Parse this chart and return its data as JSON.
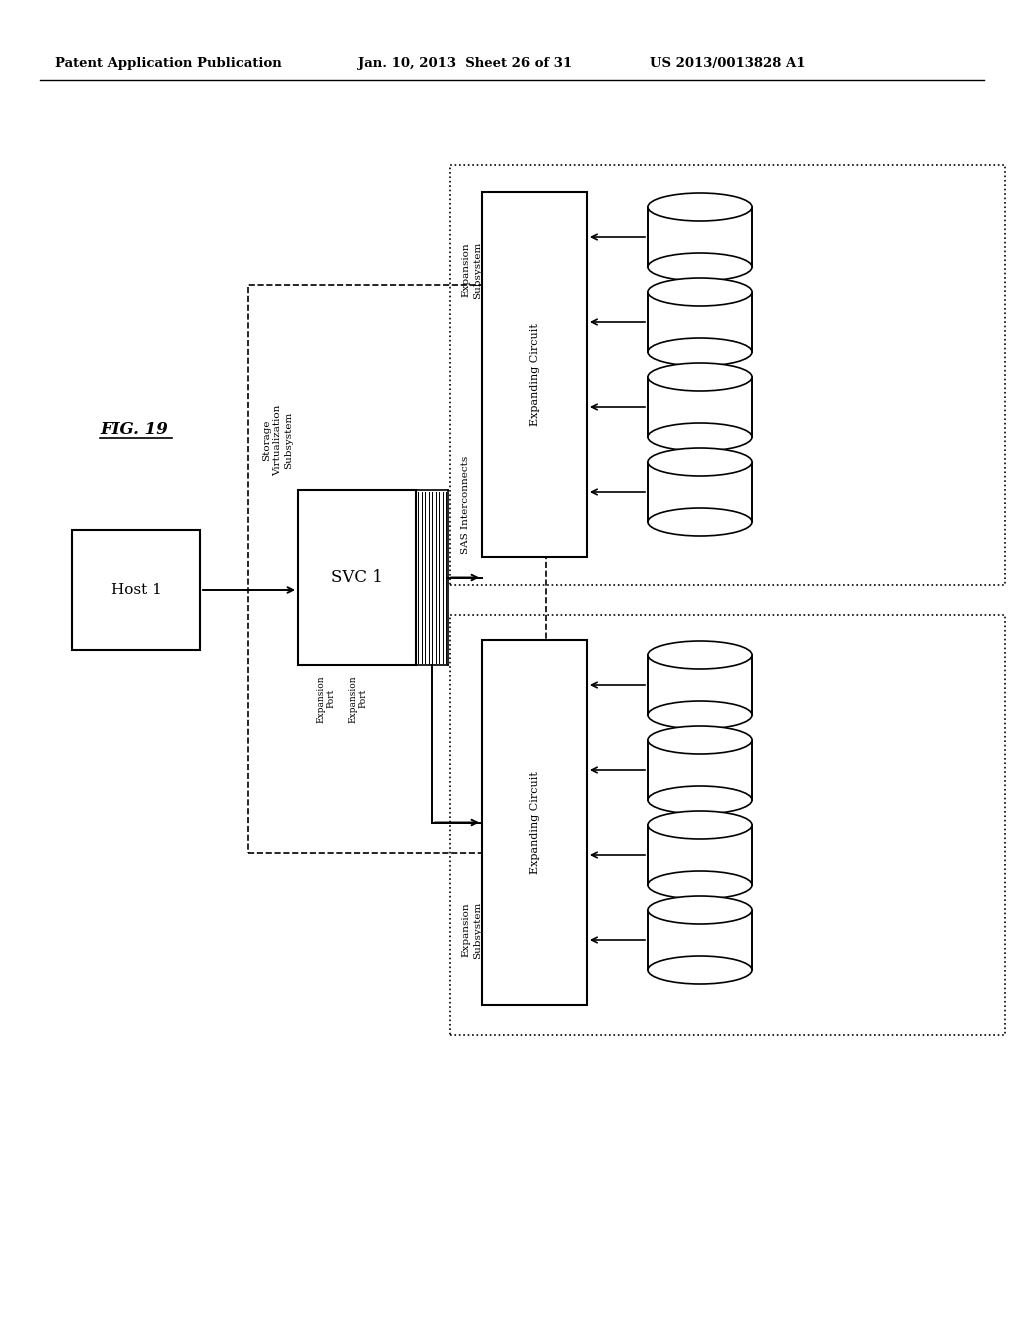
{
  "header_left": "Patent Application Publication",
  "header_center": "Jan. 10, 2013  Sheet 26 of 31",
  "header_right": "US 2013/0013828 A1",
  "fig_label": "FIG. 19",
  "background_color": "#ffffff",
  "text_color": "#000000",
  "line_color": "#000000",
  "host_label": "Host 1",
  "svc_label": "SVC 1",
  "sas_label": "SAS Interconnects",
  "svs_label": "Storage\nVirtualization\nSubsystem",
  "exp_port1_label": "Expansion\nPort",
  "exp_port2_label": "Expansion\nPort",
  "exp_circuit_label": "Expanding Circuit",
  "exp_subsys_label": "Expansion\nSubsystem"
}
